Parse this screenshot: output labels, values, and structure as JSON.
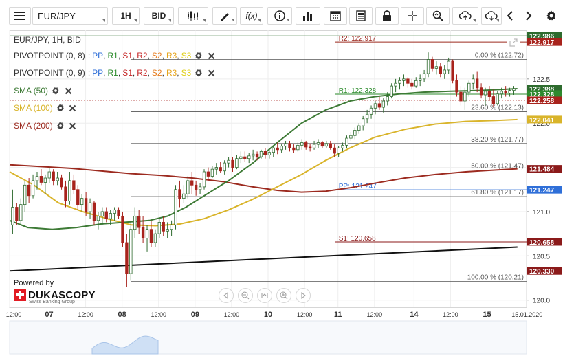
{
  "toolbar": {
    "menu_icon": "hamburger-menu-icon",
    "symbol": "EUR/JPY",
    "timeframe": "1H",
    "price_type": "BID",
    "buttons": [
      "candle-type-icon",
      "draw-pencil-icon",
      "function-icon",
      "info-icon",
      "bar-chart-icon",
      "calendar-icon",
      "news-icon",
      "lock-icon",
      "crosshair-icon",
      "zoom-icon",
      "upload-icon",
      "download-icon",
      "prev-arrow-icon",
      "next-arrow-icon",
      "settings-gear-icon"
    ],
    "fx_label": "f(x)"
  },
  "legend": {
    "title": "EUR/JPY, 1H, BID",
    "indicators": [
      {
        "name": "PIVOTPOINT (0, 8)",
        "levels": [
          "PP",
          "R1",
          "S1",
          "R2",
          "S2",
          "R3",
          "S3"
        ]
      },
      {
        "name": "PIVOTPOINT (0, 9)",
        "levels": [
          "PP",
          "R1",
          "S1",
          "R2",
          "S2",
          "R3",
          "S3"
        ]
      },
      {
        "name": "SMA (50)",
        "color": "#3d7a35"
      },
      {
        "name": "SMA (100)",
        "color": "#d9b42a"
      },
      {
        "name": "SMA (200)",
        "color": "#9c2a1f"
      }
    ]
  },
  "branding": {
    "powered_by": "Powered by",
    "brand": "DUKASCOPY",
    "tagline": "Swiss Banking Group"
  },
  "colors": {
    "bull": "#2f6b2f",
    "bear": "#a8231c",
    "sma50": "#3d7a35",
    "sma100": "#d9b42a",
    "sma200": "#9c2a1f",
    "pivot_blue": "#2f6fd8",
    "resistance_green": "#2a8a2a",
    "support_red": "#8b1a1a"
  },
  "chart_data": {
    "type": "candlestick",
    "symbol": "EUR/JPY",
    "timeframe": "1H",
    "ylim": [
      119.92,
      123.05
    ],
    "y_ticks": [
      120.0,
      120.5,
      121.0,
      121.5,
      122.0,
      122.5
    ],
    "x_ticks": [
      "12:00",
      "07",
      "12:00",
      "08",
      "12:00",
      "09",
      "12:00",
      "10",
      "12:00",
      "11",
      "12:00",
      "14",
      "12:00",
      "15",
      "15.01.2020"
    ],
    "x_tick_index": [
      0,
      13,
      25,
      37,
      49,
      61,
      73,
      85,
      97,
      108,
      120,
      133,
      145,
      157,
      167
    ],
    "x_range": [
      0,
      170
    ],
    "candles": [
      [
        120.85,
        121.25,
        120.75,
        121.05
      ],
      [
        121.05,
        121.1,
        120.85,
        120.9
      ],
      [
        120.9,
        121.15,
        120.85,
        121.08
      ],
      [
        121.08,
        121.35,
        121.0,
        121.3
      ],
      [
        121.3,
        121.38,
        121.1,
        121.18
      ],
      [
        121.18,
        121.42,
        121.15,
        121.35
      ],
      [
        121.35,
        121.45,
        121.25,
        121.4
      ],
      [
        121.4,
        121.48,
        121.3,
        121.33
      ],
      [
        121.33,
        121.42,
        121.2,
        121.38
      ],
      [
        121.38,
        121.5,
        121.32,
        121.45
      ],
      [
        121.45,
        121.48,
        121.3,
        121.35
      ],
      [
        121.35,
        121.45,
        121.3,
        121.38
      ],
      [
        121.38,
        121.42,
        121.25,
        121.28
      ],
      [
        121.28,
        121.35,
        121.05,
        121.12
      ],
      [
        121.12,
        121.45,
        121.08,
        121.35
      ],
      [
        121.35,
        121.42,
        121.2,
        121.25
      ],
      [
        121.25,
        121.3,
        121.02,
        121.08
      ],
      [
        121.08,
        121.2,
        121.0,
        121.15
      ],
      [
        121.15,
        121.22,
        120.95,
        121.0
      ],
      [
        121.0,
        121.15,
        120.92,
        121.1
      ],
      [
        121.1,
        121.12,
        120.85,
        120.9
      ],
      [
        120.9,
        121.0,
        120.8,
        120.95
      ],
      [
        120.95,
        121.05,
        120.85,
        121.0
      ],
      [
        121.0,
        121.05,
        120.88,
        120.92
      ],
      [
        120.92,
        121.02,
        120.85,
        120.98
      ],
      [
        120.98,
        121.05,
        120.9,
        121.02
      ],
      [
        121.02,
        121.05,
        120.92,
        120.95
      ],
      [
        120.95,
        121.0,
        120.6,
        120.65
      ],
      [
        120.65,
        120.75,
        120.15,
        120.3
      ],
      [
        120.3,
        120.9,
        120.22,
        120.8
      ],
      [
        120.8,
        121.05,
        120.7,
        120.95
      ],
      [
        120.95,
        121.02,
        120.75,
        120.82
      ],
      [
        120.82,
        120.95,
        120.65,
        120.7
      ],
      [
        120.7,
        120.85,
        120.55,
        120.8
      ],
      [
        120.8,
        120.9,
        120.6,
        120.65
      ],
      [
        120.65,
        120.8,
        120.6,
        120.75
      ],
      [
        120.75,
        120.92,
        120.7,
        120.88
      ],
      [
        120.88,
        120.95,
        120.72,
        120.78
      ],
      [
        120.78,
        120.88,
        120.7,
        120.8
      ],
      [
        120.8,
        120.9,
        120.72,
        120.85
      ],
      [
        120.85,
        121.3,
        120.8,
        121.25
      ],
      [
        121.25,
        121.35,
        121.05,
        121.15
      ],
      [
        121.15,
        121.3,
        121.1,
        121.2
      ],
      [
        121.2,
        121.4,
        121.15,
        121.35
      ],
      [
        121.35,
        121.45,
        121.2,
        121.3
      ],
      [
        121.3,
        121.35,
        121.18,
        121.25
      ],
      [
        121.25,
        121.32,
        121.2,
        121.28
      ],
      [
        121.28,
        121.48,
        121.25,
        121.45
      ],
      [
        121.45,
        121.5,
        121.35,
        121.4
      ],
      [
        121.4,
        121.52,
        121.38,
        121.48
      ],
      [
        121.48,
        121.55,
        121.42,
        121.5
      ],
      [
        121.5,
        121.56,
        121.44,
        121.46
      ],
      [
        121.46,
        121.58,
        121.42,
        121.55
      ],
      [
        121.55,
        121.62,
        121.5,
        121.58
      ],
      [
        121.58,
        121.62,
        121.45,
        121.5
      ],
      [
        121.5,
        121.64,
        121.48,
        121.6
      ],
      [
        121.6,
        121.68,
        121.55,
        121.62
      ],
      [
        121.62,
        121.68,
        121.56,
        121.6
      ],
      [
        121.6,
        121.66,
        121.55,
        121.63
      ],
      [
        121.63,
        121.7,
        121.58,
        121.65
      ],
      [
        121.65,
        121.68,
        121.58,
        121.62
      ],
      [
        121.62,
        121.7,
        121.6,
        121.68
      ],
      [
        121.68,
        121.72,
        121.6,
        121.64
      ],
      [
        121.64,
        121.7,
        121.6,
        121.67
      ],
      [
        121.67,
        121.74,
        121.62,
        121.72
      ],
      [
        121.72,
        121.78,
        121.65,
        121.7
      ],
      [
        121.7,
        121.76,
        121.66,
        121.74
      ],
      [
        121.74,
        121.8,
        121.7,
        121.77
      ],
      [
        121.77,
        121.8,
        121.68,
        121.72
      ],
      [
        121.72,
        121.76,
        121.66,
        121.7
      ],
      [
        121.7,
        121.78,
        121.68,
        121.75
      ],
      [
        121.75,
        121.82,
        121.7,
        121.78
      ],
      [
        121.78,
        121.8,
        121.7,
        121.73
      ],
      [
        121.73,
        121.77,
        121.68,
        121.72
      ],
      [
        121.72,
        121.8,
        121.7,
        121.76
      ],
      [
        121.76,
        121.82,
        121.72,
        121.78
      ],
      [
        121.78,
        121.8,
        121.72,
        121.74
      ],
      [
        121.74,
        121.8,
        121.72,
        121.77
      ],
      [
        121.77,
        121.8,
        121.7,
        121.72
      ],
      [
        121.72,
        121.76,
        121.62,
        121.66
      ],
      [
        121.66,
        121.74,
        121.62,
        121.72
      ],
      [
        121.72,
        121.78,
        121.68,
        121.75
      ],
      [
        121.75,
        121.86,
        121.72,
        121.83
      ],
      [
        121.83,
        121.9,
        121.8,
        121.86
      ],
      [
        121.86,
        121.95,
        121.82,
        121.92
      ],
      [
        121.92,
        122.0,
        121.88,
        121.97
      ],
      [
        121.97,
        122.08,
        121.92,
        122.05
      ],
      [
        122.05,
        122.15,
        122.0,
        122.1
      ],
      [
        122.1,
        122.2,
        122.05,
        122.17
      ],
      [
        122.17,
        122.25,
        122.1,
        122.22
      ],
      [
        122.22,
        122.3,
        122.15,
        122.18
      ],
      [
        122.18,
        122.28,
        122.12,
        122.25
      ],
      [
        122.25,
        122.35,
        122.2,
        122.3
      ],
      [
        122.3,
        122.45,
        122.28,
        122.42
      ],
      [
        122.42,
        122.5,
        122.35,
        122.45
      ],
      [
        122.45,
        122.52,
        122.38,
        122.48
      ],
      [
        122.48,
        122.55,
        122.42,
        122.5
      ],
      [
        122.5,
        122.52,
        122.4,
        122.45
      ],
      [
        122.45,
        122.5,
        122.38,
        122.42
      ],
      [
        122.42,
        122.52,
        122.4,
        122.48
      ],
      [
        122.48,
        122.55,
        122.42,
        122.5
      ],
      [
        122.5,
        122.6,
        122.46,
        122.56
      ],
      [
        122.56,
        122.8,
        122.52,
        122.72
      ],
      [
        122.72,
        122.75,
        122.58,
        122.62
      ],
      [
        122.62,
        122.7,
        122.55,
        122.64
      ],
      [
        122.64,
        122.68,
        122.52,
        122.56
      ],
      [
        122.56,
        122.66,
        122.5,
        122.6
      ],
      [
        122.6,
        122.74,
        122.56,
        122.7
      ],
      [
        122.7,
        122.72,
        122.45,
        122.48
      ],
      [
        122.48,
        122.55,
        122.3,
        122.35
      ],
      [
        122.35,
        122.42,
        122.2,
        122.25
      ],
      [
        122.25,
        122.4,
        122.15,
        122.35
      ],
      [
        122.35,
        122.48,
        122.3,
        122.45
      ],
      [
        122.45,
        122.55,
        122.38,
        122.5
      ],
      [
        122.5,
        122.58,
        122.35,
        122.4
      ],
      [
        122.4,
        122.45,
        122.28,
        122.32
      ],
      [
        122.32,
        122.4,
        122.2,
        122.36
      ],
      [
        122.36,
        122.42,
        122.25,
        122.3
      ],
      [
        122.3,
        122.38,
        122.18,
        122.22
      ],
      [
        122.22,
        122.36,
        122.2,
        122.33
      ],
      [
        122.33,
        122.4,
        122.28,
        122.36
      ],
      [
        122.36,
        122.42,
        122.3,
        122.34
      ],
      [
        122.34,
        122.4,
        122.3,
        122.37
      ],
      [
        122.37,
        122.42,
        122.32,
        122.39
      ]
    ],
    "candle_x_start": 1,
    "candle_x_step": 1.34,
    "horizontal_levels": [
      {
        "label": "R2: 122.917",
        "value": 122.917,
        "color": "#9c2a1f",
        "from": 108
      },
      {
        "label": "R1: 122.328",
        "value": 122.328,
        "color": "#2a8a2a",
        "from": 108
      },
      {
        "label": "PP: 121.247",
        "value": 121.247,
        "color": "#2f6fd8",
        "from": 108
      },
      {
        "label": "S1: 120.658",
        "value": 120.658,
        "color": "#8b1a1a",
        "from": 108
      }
    ],
    "fibonacci": [
      {
        "label": "0.00 % (122.72)",
        "value": 122.72
      },
      {
        "label": "23.60 % (122.13)",
        "value": 122.13
      },
      {
        "label": "38.20 % (121.77)",
        "value": 121.77
      },
      {
        "label": "50.00 % (121.47)",
        "value": 121.47
      },
      {
        "label": "61.80 % (121.17)",
        "value": 121.17
      },
      {
        "label": "100.00 % (120.21)",
        "value": 120.21
      }
    ],
    "fibonacci_from": 40,
    "trendline": {
      "from": [
        0,
        120.33
      ],
      "to": [
        167,
        120.6
      ],
      "color": "#111111"
    },
    "sma50": [
      [
        0,
        120.9
      ],
      [
        6,
        120.82
      ],
      [
        14,
        120.8
      ],
      [
        22,
        120.82
      ],
      [
        30,
        120.86
      ],
      [
        38,
        120.88
      ],
      [
        46,
        120.9
      ],
      [
        52,
        120.95
      ],
      [
        58,
        121.05
      ],
      [
        64,
        121.18
      ],
      [
        72,
        121.35
      ],
      [
        80,
        121.55
      ],
      [
        88,
        121.78
      ],
      [
        96,
        122.0
      ],
      [
        104,
        122.15
      ],
      [
        112,
        122.25
      ],
      [
        120,
        122.3
      ],
      [
        128,
        122.33
      ],
      [
        136,
        122.35
      ],
      [
        145,
        122.36
      ],
      [
        155,
        122.37
      ],
      [
        167,
        122.39
      ]
    ],
    "sma100": [
      [
        0,
        121.45
      ],
      [
        8,
        121.3
      ],
      [
        16,
        121.1
      ],
      [
        24,
        121.0
      ],
      [
        32,
        120.92
      ],
      [
        40,
        120.85
      ],
      [
        48,
        120.84
      ],
      [
        56,
        120.86
      ],
      [
        64,
        120.92
      ],
      [
        72,
        121.02
      ],
      [
        80,
        121.14
      ],
      [
        88,
        121.28
      ],
      [
        96,
        121.42
      ],
      [
        104,
        121.58
      ],
      [
        112,
        121.72
      ],
      [
        120,
        121.84
      ],
      [
        130,
        121.93
      ],
      [
        140,
        121.99
      ],
      [
        150,
        122.02
      ],
      [
        160,
        122.03
      ],
      [
        167,
        122.041
      ]
    ],
    "sma200": [
      [
        0,
        121.53
      ],
      [
        10,
        121.51
      ],
      [
        20,
        121.49
      ],
      [
        30,
        121.46
      ],
      [
        40,
        121.43
      ],
      [
        50,
        121.41
      ],
      [
        60,
        121.38
      ],
      [
        70,
        121.34
      ],
      [
        80,
        121.28
      ],
      [
        88,
        121.24
      ],
      [
        96,
        121.22
      ],
      [
        104,
        121.23
      ],
      [
        112,
        121.27
      ],
      [
        120,
        121.32
      ],
      [
        130,
        121.38
      ],
      [
        140,
        121.42
      ],
      [
        150,
        121.45
      ],
      [
        160,
        121.47
      ],
      [
        167,
        121.484
      ]
    ],
    "price_badges": [
      {
        "value": 122.986,
        "label": "122.986",
        "color": "#2e6b2e"
      },
      {
        "value": 122.917,
        "label": "122.917",
        "color": "#a8231c"
      },
      {
        "value": 122.388,
        "label": "122.388",
        "color": "#2e6b2e"
      },
      {
        "value": 122.328,
        "label": "122.328",
        "color": "#2e8a2e"
      },
      {
        "value": 122.258,
        "label": "122.258",
        "color": "#a8231c"
      },
      {
        "value": 122.041,
        "label": "122.041",
        "color": "#d9b42a"
      },
      {
        "value": 121.484,
        "label": "121.484",
        "color": "#8b1a1a"
      },
      {
        "value": 121.247,
        "label": "121.247",
        "color": "#2f6fd8"
      },
      {
        "value": 120.658,
        "label": "120.658",
        "color": "#8b1a1a"
      },
      {
        "value": 120.33,
        "label": "120.330",
        "color": "#8b1a1a"
      }
    ],
    "last_price": 122.258
  }
}
